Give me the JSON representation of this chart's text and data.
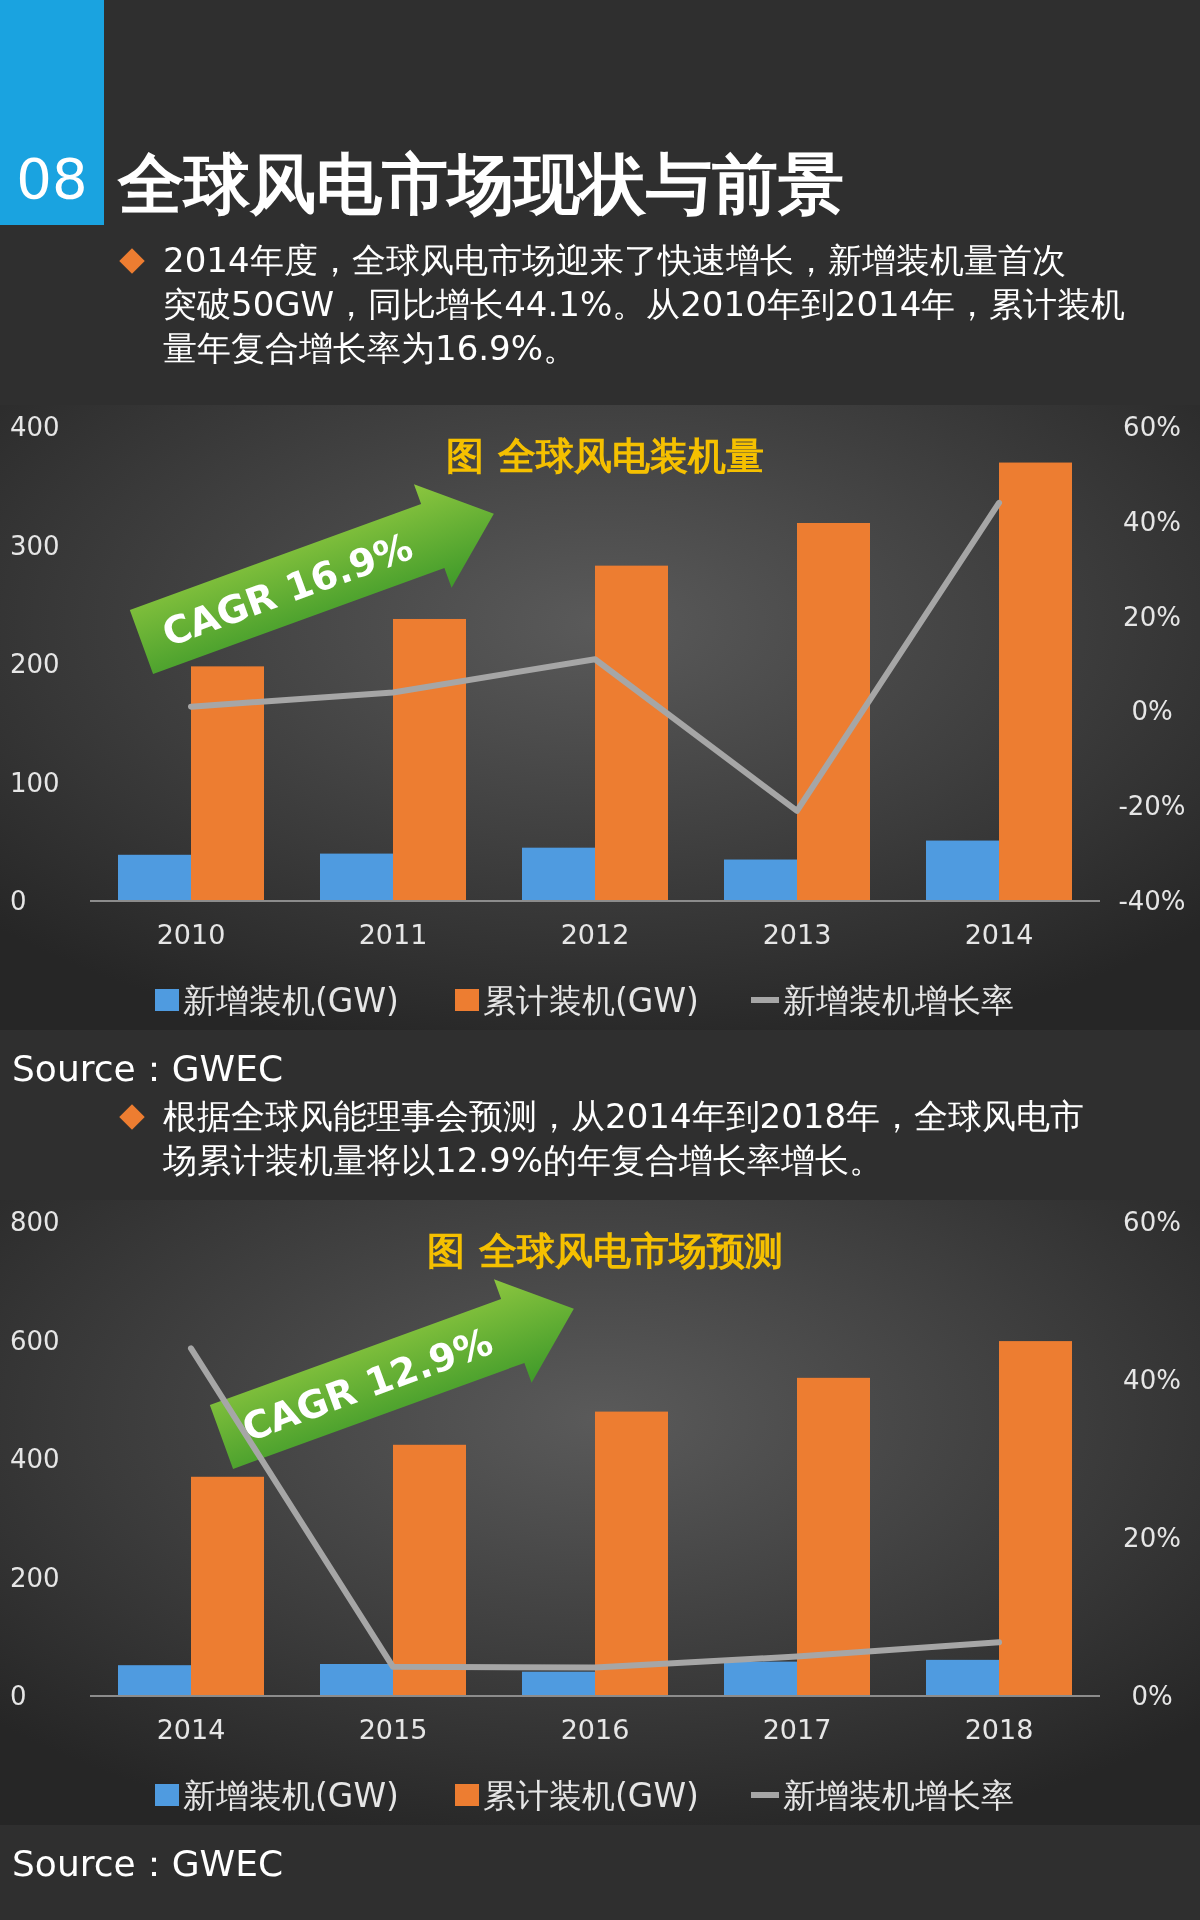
{
  "chart_data": [
    {
      "type": "bar",
      "title": "图 全球风电装机量",
      "categories": [
        "2010",
        "2011",
        "2012",
        "2013",
        "2014"
      ],
      "series": [
        {
          "name": "新增装机(GW)",
          "color": "#4f9be0",
          "values": [
            39,
            40,
            45,
            35,
            51
          ]
        },
        {
          "name": "累计装机(GW)",
          "color": "#ed7d31",
          "values": [
            198,
            238,
            283,
            319,
            370
          ]
        },
        {
          "name": "新增装机增长率",
          "color": "#a6a6a6",
          "type": "line",
          "axis": "y2",
          "values": [
            1,
            4,
            11,
            -21,
            44
          ]
        }
      ],
      "ylim": [
        0,
        400
      ],
      "yticks": [
        0,
        100,
        200,
        300,
        400
      ],
      "y2lim": [
        -40,
        60
      ],
      "y2ticks": [
        {
          "value": -40,
          "label": "-40%"
        },
        {
          "value": -20,
          "label": "-20%"
        },
        {
          "value": 0,
          "label": "0%"
        },
        {
          "value": 20,
          "label": "20%"
        },
        {
          "value": 40,
          "label": "40%"
        },
        {
          "value": 60,
          "label": "60%"
        }
      ],
      "legend": "bottom",
      "annotations": [
        "08",
        "全球风电市场现状与前景",
        "2014年度，全球风电市场迎来了快速增长，新增装机量首次突破50GW，同比增长44.1%。从2010年到2014年，累计装机量年复合增长率为16.9%。",
        "CAGR 16.9%",
        "Source：GWEC"
      ]
    },
    {
      "type": "bar",
      "title": "图 全球风电市场预测",
      "categories": [
        "2014",
        "2015",
        "2016",
        "2017",
        "2018"
      ],
      "series": [
        {
          "name": "新增装机(GW)",
          "color": "#4f9be0",
          "values": [
            52,
            54,
            41,
            58,
            61
          ]
        },
        {
          "name": "累计装机(GW)",
          "color": "#ed7d31",
          "values": [
            370,
            424,
            480,
            537,
            599
          ]
        },
        {
          "name": "新增装机增长率",
          "color": "#a6a6a6",
          "type": "line",
          "axis": "y2",
          "values": [
            44,
            3.7,
            3.6,
            5,
            6.8
          ]
        }
      ],
      "ylim": [
        0,
        800
      ],
      "yticks": [
        0,
        200,
        400,
        600,
        800
      ],
      "y2lim": [
        0,
        60
      ],
      "y2ticks": [
        {
          "value": 0,
          "label": "0%"
        },
        {
          "value": 20,
          "label": "20%"
        },
        {
          "value": 40,
          "label": "40%"
        },
        {
          "value": 60,
          "label": "60%"
        }
      ],
      "legend": "bottom",
      "annotations": [
        "根据全球风能理事会预测，从2014年到2018年，全球风电市场累计装机量将以12.9%的年复合增长率增长。",
        "CAGR 12.9%",
        "Source：GWEC"
      ]
    }
  ]
}
